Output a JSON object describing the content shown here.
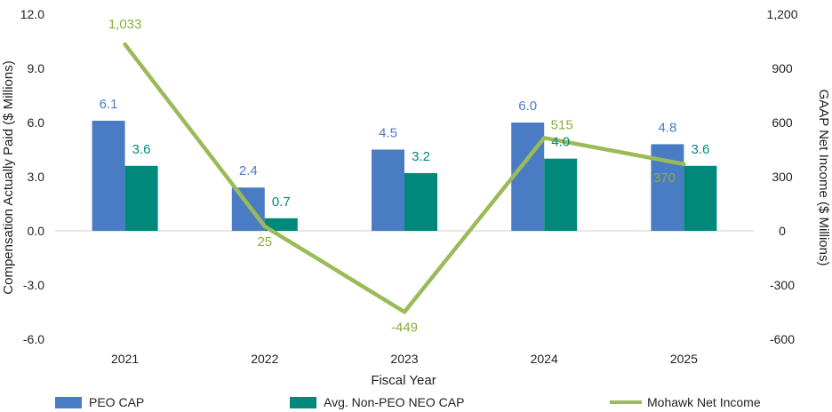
{
  "chart_data": {
    "type": "bar",
    "categories": [
      "2021",
      "2022",
      "2023",
      "2024",
      "2025"
    ],
    "series": [
      {
        "name": "PEO CAP",
        "kind": "bar",
        "axis": "left",
        "color": "#4a7cc4",
        "values": [
          6.1,
          2.4,
          4.5,
          6.0,
          4.8
        ],
        "labels": [
          "6.1",
          "2.4",
          "4.5",
          "6.0",
          "4.8"
        ]
      },
      {
        "name": "Avg. Non-PEO NEO CAP",
        "kind": "bar",
        "axis": "left",
        "color": "#00897b",
        "values": [
          3.6,
          0.7,
          3.2,
          4.0,
          3.6
        ],
        "labels": [
          "3.6",
          "0.7",
          "3.2",
          "4.0",
          "3.6"
        ]
      },
      {
        "name": "Mohawk Net Income",
        "kind": "line",
        "axis": "right",
        "color": "#9bbb59",
        "values": [
          1033,
          25,
          -449,
          515,
          370
        ],
        "labels": [
          "1,033",
          "25",
          "-449",
          "515",
          "370"
        ]
      }
    ],
    "xlabel": "Fiscal Year",
    "ylabel": "Compensation Actually Paid ($ Millions)",
    "y2label": "GAAP Net Income ($ Millions)",
    "ylim": [
      -6,
      12
    ],
    "y2lim": [
      -600,
      1200
    ],
    "yticks": [
      "-6.0",
      "-3.0",
      "0.0",
      "3.0",
      "6.0",
      "9.0",
      "12.0"
    ],
    "y2ticks": [
      "-600",
      "-300",
      "0",
      "300",
      "600",
      "900",
      "1,200"
    ],
    "grid": false,
    "legend_position": "bottom"
  }
}
